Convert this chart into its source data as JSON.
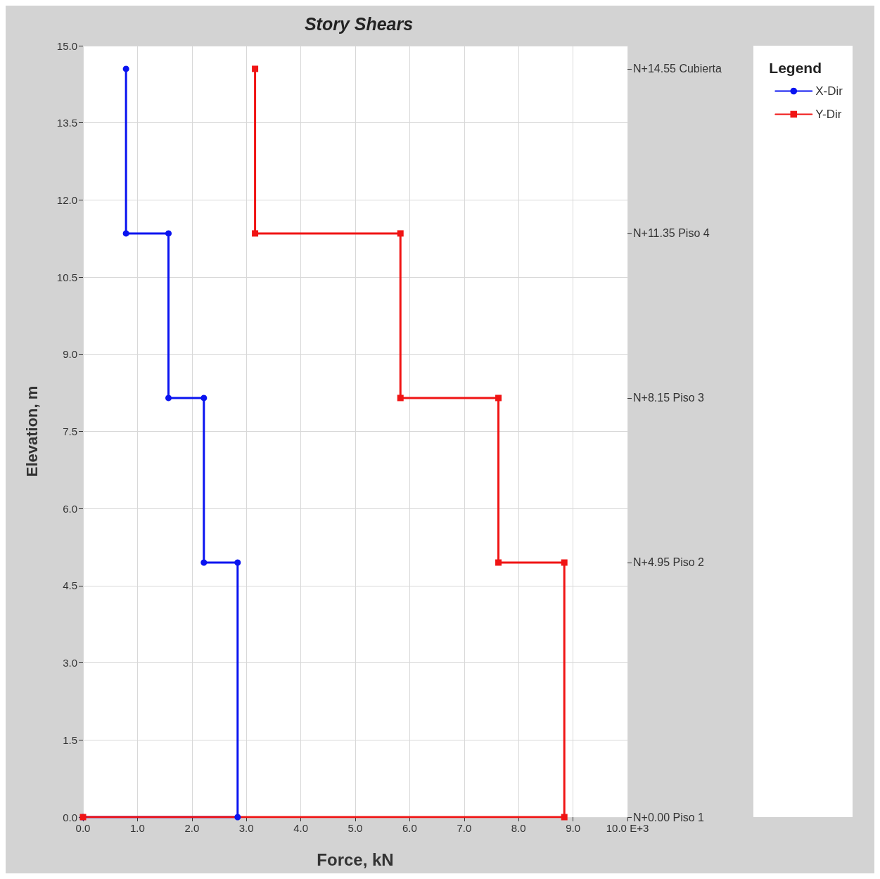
{
  "chart_data": {
    "type": "line",
    "title": "Story Shears",
    "xlabel": "Force, kN",
    "ylabel": "Elevation, m",
    "legend_title": "Legend",
    "xlim": [
      0,
      10
    ],
    "ylim": [
      0,
      15
    ],
    "xticks": [
      {
        "value": 0,
        "label": "0.0"
      },
      {
        "value": 1,
        "label": "1.0"
      },
      {
        "value": 2,
        "label": "2.0"
      },
      {
        "value": 3,
        "label": "3.0"
      },
      {
        "value": 4,
        "label": "4.0"
      },
      {
        "value": 5,
        "label": "5.0"
      },
      {
        "value": 6,
        "label": "6.0"
      },
      {
        "value": 7,
        "label": "7.0"
      },
      {
        "value": 8,
        "label": "8.0"
      },
      {
        "value": 9,
        "label": "9.0"
      },
      {
        "value": 10,
        "label": "10.0 E+3"
      }
    ],
    "yticks": [
      {
        "value": 0,
        "label": "0.0"
      },
      {
        "value": 1.5,
        "label": "1.5"
      },
      {
        "value": 3,
        "label": "3.0"
      },
      {
        "value": 4.5,
        "label": "4.5"
      },
      {
        "value": 6,
        "label": "6.0"
      },
      {
        "value": 7.5,
        "label": "7.5"
      },
      {
        "value": 9,
        "label": "9.0"
      },
      {
        "value": 10.5,
        "label": "10.5"
      },
      {
        "value": 12,
        "label": "12.0"
      },
      {
        "value": 13.5,
        "label": "13.5"
      },
      {
        "value": 15,
        "label": "15.0"
      }
    ],
    "annotations": [
      "N+0.00 Piso 1",
      "N+4.95 Piso 2",
      "N+8.15 Piso 3",
      "N+11.35 Piso 4",
      "N+14.55 Cubierta"
    ],
    "grid": true,
    "legend": "top right",
    "line_style": "solid",
    "series": [
      {
        "name": "X-Dir",
        "color": "#0a14f0",
        "marker": "circle",
        "x": [
          0,
          2.84,
          2.84,
          2.22,
          2.22,
          1.57,
          1.57,
          0.79,
          0.79
        ],
        "values": [
          0,
          0,
          4.95,
          4.95,
          8.15,
          8.15,
          11.35,
          11.35,
          14.55
        ]
      },
      {
        "name": "Y-Dir",
        "color": "#f01414",
        "marker": "square",
        "x": [
          0,
          8.84,
          8.84,
          7.63,
          7.63,
          5.83,
          5.83,
          3.16,
          3.16
        ],
        "values": [
          0,
          0,
          4.95,
          4.95,
          8.15,
          8.15,
          11.35,
          11.35,
          14.55
        ]
      }
    ]
  }
}
